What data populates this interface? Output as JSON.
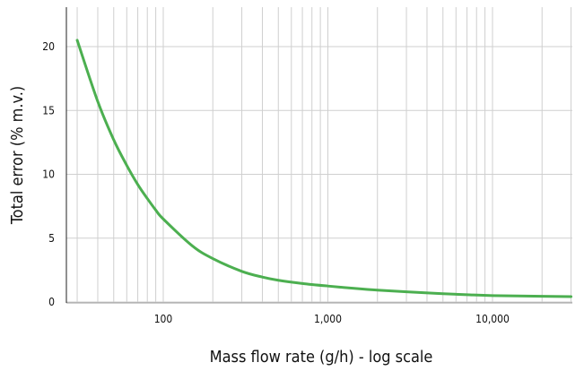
{
  "chart_data": {
    "type": "line",
    "title": "",
    "xlabel": "Mass flow rate (g/h) - log scale",
    "ylabel": "Total error (% m.v.)",
    "xscale": "log",
    "xlim": [
      27,
      30000
    ],
    "ylim": [
      0,
      21.5
    ],
    "xticks": [
      100,
      1000,
      10000
    ],
    "xtick_labels": [
      "100",
      "1,000",
      "10,000"
    ],
    "yticks": [
      0,
      5,
      10,
      15,
      20
    ],
    "ytick_labels": [
      "0",
      "5",
      "10",
      "15",
      "20"
    ],
    "grid": {
      "x": "log minor + major",
      "y": "major"
    },
    "legend": "none",
    "series": [
      {
        "color": "#4caf50",
        "x": [
          30,
          40,
          50,
          60,
          70,
          80,
          90,
          100,
          150,
          200,
          300,
          400,
          500,
          700,
          1000,
          1500,
          2000,
          3000,
          5000,
          7000,
          10000,
          20000,
          30000
        ],
        "y": [
          20.5,
          15.7,
          12.7,
          10.7,
          9.2,
          8.1,
          7.2,
          6.5,
          4.4,
          3.4,
          2.4,
          1.95,
          1.7,
          1.45,
          1.25,
          1.05,
          0.93,
          0.8,
          0.65,
          0.57,
          0.5,
          0.45,
          0.42
        ]
      }
    ]
  }
}
